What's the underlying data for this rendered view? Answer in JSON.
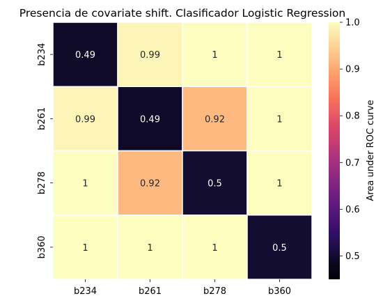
{
  "chart_data": {
    "type": "heatmap",
    "title": "Presencia de covariate shift. Clasificador Logistic Regression",
    "x_categories": [
      "b234",
      "b261",
      "b278",
      "b360"
    ],
    "y_categories": [
      "b234",
      "b261",
      "b278",
      "b360"
    ],
    "values": [
      [
        0.49,
        0.99,
        1,
        1
      ],
      [
        0.99,
        0.49,
        0.92,
        1
      ],
      [
        1,
        0.92,
        0.5,
        1
      ],
      [
        1,
        1,
        1,
        0.5
      ]
    ],
    "value_labels": [
      [
        "0.49",
        "0.99",
        "1",
        "1"
      ],
      [
        "0.99",
        "0.49",
        "0.92",
        "1"
      ],
      [
        "1",
        "0.92",
        "0.5",
        "1"
      ],
      [
        "1",
        "1",
        "1",
        "0.5"
      ]
    ],
    "colormap": "magma",
    "vmin": 0.45,
    "vmax": 1.0,
    "colorbar": {
      "label": "Area under ROC curve",
      "ticks": [
        "0.5",
        "0.6",
        "0.7",
        "0.8",
        "0.9",
        "1.0"
      ],
      "tick_values": [
        0.5,
        0.6,
        0.7,
        0.8,
        0.9,
        1.0
      ]
    },
    "cell_border_color": "#ffffff"
  }
}
